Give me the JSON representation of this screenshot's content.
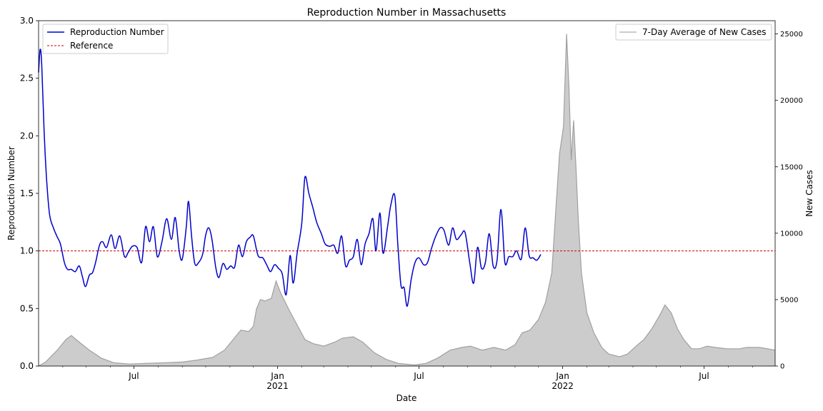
{
  "chart_data": {
    "type": "line",
    "title": "Reproduction Number in Massachusetts",
    "xlabel": "Date",
    "ylabel": "Reproduction Number",
    "y2label": "New Cases",
    "xlim": [
      "2020-03-01",
      "2022-09-30"
    ],
    "ylim": [
      0,
      3.0
    ],
    "y2lim": [
      0,
      26000
    ],
    "grid": false,
    "x_ticks": [
      {
        "date": "2020-07-01",
        "label": "Jul",
        "sub": ""
      },
      {
        "date": "2021-01-01",
        "label": "Jan",
        "sub": "2021"
      },
      {
        "date": "2021-07-01",
        "label": "Jul",
        "sub": ""
      },
      {
        "date": "2022-01-01",
        "label": "Jan",
        "sub": "2022"
      },
      {
        "date": "2022-07-01",
        "label": "Jul",
        "sub": ""
      }
    ],
    "x_minor_ticks": [
      "2020-04-01",
      "2020-05-01",
      "2020-06-01",
      "2020-08-01",
      "2020-09-01",
      "2020-10-01",
      "2020-11-01",
      "2020-12-01",
      "2021-02-01",
      "2021-03-01",
      "2021-04-01",
      "2021-05-01",
      "2021-06-01",
      "2021-08-01",
      "2021-09-01",
      "2021-10-01",
      "2021-11-01",
      "2021-12-01",
      "2022-02-01",
      "2022-03-01",
      "2022-04-01",
      "2022-05-01",
      "2022-06-01",
      "2022-08-01",
      "2022-09-01"
    ],
    "y_ticks": [
      "0.0",
      "0.5",
      "1.0",
      "1.5",
      "2.0",
      "2.5",
      "3.0"
    ],
    "y2_ticks": [
      "0",
      "5000",
      "10000",
      "15000",
      "20000",
      "25000"
    ],
    "legend_left": {
      "placement": "upper-left",
      "entries": [
        "Reproduction Number",
        "Reference"
      ]
    },
    "legend_right": {
      "placement": "upper-right",
      "entries": [
        "7-Day Average of New Cases"
      ]
    },
    "series": [
      {
        "name": "Reproduction Number",
        "axis": "left",
        "color": "#0000cc",
        "points": [
          [
            "2020-03-01",
            2.55
          ],
          [
            "2020-03-03",
            2.75
          ],
          [
            "2020-03-05",
            2.62
          ],
          [
            "2020-03-08",
            2.05
          ],
          [
            "2020-03-11",
            1.65
          ],
          [
            "2020-03-15",
            1.32
          ],
          [
            "2020-03-20",
            1.2
          ],
          [
            "2020-03-25",
            1.12
          ],
          [
            "2020-03-29",
            1.06
          ],
          [
            "2020-04-03",
            0.9
          ],
          [
            "2020-04-07",
            0.84
          ],
          [
            "2020-04-12",
            0.84
          ],
          [
            "2020-04-17",
            0.82
          ],
          [
            "2020-04-22",
            0.87
          ],
          [
            "2020-04-26",
            0.78
          ],
          [
            "2020-04-30",
            0.69
          ],
          [
            "2020-05-05",
            0.79
          ],
          [
            "2020-05-09",
            0.81
          ],
          [
            "2020-05-13",
            0.9
          ],
          [
            "2020-05-18",
            1.05
          ],
          [
            "2020-05-22",
            1.08
          ],
          [
            "2020-05-27",
            1.03
          ],
          [
            "2020-06-02",
            1.14
          ],
          [
            "2020-06-07",
            1.02
          ],
          [
            "2020-06-13",
            1.13
          ],
          [
            "2020-06-19",
            0.95
          ],
          [
            "2020-06-24",
            0.99
          ],
          [
            "2020-06-29",
            1.04
          ],
          [
            "2020-07-05",
            1.03
          ],
          [
            "2020-07-11",
            0.9
          ],
          [
            "2020-07-16",
            1.21
          ],
          [
            "2020-07-21",
            1.08
          ],
          [
            "2020-07-26",
            1.21
          ],
          [
            "2020-07-31",
            0.95
          ],
          [
            "2020-08-06",
            1.08
          ],
          [
            "2020-08-12",
            1.28
          ],
          [
            "2020-08-18",
            1.1
          ],
          [
            "2020-08-23",
            1.29
          ],
          [
            "2020-08-28",
            1.0
          ],
          [
            "2020-09-01",
            0.93
          ],
          [
            "2020-09-06",
            1.2
          ],
          [
            "2020-09-09",
            1.43
          ],
          [
            "2020-09-13",
            1.12
          ],
          [
            "2020-09-17",
            0.89
          ],
          [
            "2020-09-22",
            0.9
          ],
          [
            "2020-09-27",
            0.97
          ],
          [
            "2020-10-01",
            1.14
          ],
          [
            "2020-10-05",
            1.2
          ],
          [
            "2020-10-09",
            1.1
          ],
          [
            "2020-10-14",
            0.85
          ],
          [
            "2020-10-18",
            0.77
          ],
          [
            "2020-10-23",
            0.89
          ],
          [
            "2020-10-28",
            0.84
          ],
          [
            "2020-11-02",
            0.87
          ],
          [
            "2020-11-07",
            0.86
          ],
          [
            "2020-11-12",
            1.05
          ],
          [
            "2020-11-17",
            0.95
          ],
          [
            "2020-11-22",
            1.08
          ],
          [
            "2020-11-27",
            1.12
          ],
          [
            "2020-12-01",
            1.13
          ],
          [
            "2020-12-07",
            0.96
          ],
          [
            "2020-12-13",
            0.94
          ],
          [
            "2020-12-18",
            0.88
          ],
          [
            "2020-12-23",
            0.82
          ],
          [
            "2020-12-28",
            0.88
          ],
          [
            "2021-01-02",
            0.85
          ],
          [
            "2021-01-07",
            0.8
          ],
          [
            "2021-01-12",
            0.62
          ],
          [
            "2021-01-17",
            0.96
          ],
          [
            "2021-01-21",
            0.72
          ],
          [
            "2021-01-26",
            0.98
          ],
          [
            "2021-02-01",
            1.24
          ],
          [
            "2021-02-05",
            1.64
          ],
          [
            "2021-02-10",
            1.5
          ],
          [
            "2021-02-15",
            1.38
          ],
          [
            "2021-02-20",
            1.25
          ],
          [
            "2021-02-26",
            1.15
          ],
          [
            "2021-03-03",
            1.06
          ],
          [
            "2021-03-09",
            1.04
          ],
          [
            "2021-03-14",
            1.05
          ],
          [
            "2021-03-19",
            0.98
          ],
          [
            "2021-03-24",
            1.13
          ],
          [
            "2021-03-29",
            0.87
          ],
          [
            "2021-04-03",
            0.92
          ],
          [
            "2021-04-08",
            0.95
          ],
          [
            "2021-04-13",
            1.1
          ],
          [
            "2021-04-18",
            0.88
          ],
          [
            "2021-04-23",
            1.06
          ],
          [
            "2021-04-28",
            1.15
          ],
          [
            "2021-05-03",
            1.28
          ],
          [
            "2021-05-07",
            1.0
          ],
          [
            "2021-05-12",
            1.33
          ],
          [
            "2021-05-16",
            0.98
          ],
          [
            "2021-05-22",
            1.22
          ],
          [
            "2021-05-26",
            1.4
          ],
          [
            "2021-05-31",
            1.48
          ],
          [
            "2021-06-04",
            1.05
          ],
          [
            "2021-06-08",
            0.7
          ],
          [
            "2021-06-12",
            0.68
          ],
          [
            "2021-06-16",
            0.52
          ],
          [
            "2021-06-21",
            0.75
          ],
          [
            "2021-06-26",
            0.9
          ],
          [
            "2021-07-01",
            0.94
          ],
          [
            "2021-07-07",
            0.88
          ],
          [
            "2021-07-12",
            0.9
          ],
          [
            "2021-07-17",
            1.02
          ],
          [
            "2021-07-22",
            1.12
          ],
          [
            "2021-07-28",
            1.2
          ],
          [
            "2021-08-02",
            1.18
          ],
          [
            "2021-08-08",
            1.05
          ],
          [
            "2021-08-13",
            1.2
          ],
          [
            "2021-08-18",
            1.1
          ],
          [
            "2021-08-24",
            1.14
          ],
          [
            "2021-08-29",
            1.16
          ],
          [
            "2021-09-04",
            0.9
          ],
          [
            "2021-09-09",
            0.72
          ],
          [
            "2021-09-14",
            1.03
          ],
          [
            "2021-09-19",
            0.85
          ],
          [
            "2021-09-24",
            0.9
          ],
          [
            "2021-09-29",
            1.15
          ],
          [
            "2021-10-04",
            0.87
          ],
          [
            "2021-10-09",
            0.92
          ],
          [
            "2021-10-14",
            1.36
          ],
          [
            "2021-10-19",
            0.9
          ],
          [
            "2021-10-24",
            0.95
          ],
          [
            "2021-10-29",
            0.95
          ],
          [
            "2021-11-03",
            1.0
          ],
          [
            "2021-11-09",
            0.93
          ],
          [
            "2021-11-14",
            1.2
          ],
          [
            "2021-11-19",
            0.96
          ],
          [
            "2021-11-24",
            0.94
          ],
          [
            "2021-11-29",
            0.92
          ],
          [
            "2021-12-04",
            0.97
          ]
        ]
      },
      {
        "name": "Reference",
        "axis": "left",
        "color": "#cc0000",
        "value": 1.0
      },
      {
        "name": "7-Day Average of New Cases",
        "axis": "right",
        "color": "#a0a0a0",
        "fill": "#cccccc",
        "points": [
          [
            "2020-03-01",
            0
          ],
          [
            "2020-03-10",
            300
          ],
          [
            "2020-03-25",
            1200
          ],
          [
            "2020-04-05",
            2000
          ],
          [
            "2020-04-12",
            2300
          ],
          [
            "2020-04-22",
            1800
          ],
          [
            "2020-05-05",
            1200
          ],
          [
            "2020-05-20",
            600
          ],
          [
            "2020-06-05",
            250
          ],
          [
            "2020-06-25",
            150
          ],
          [
            "2020-07-15",
            200
          ],
          [
            "2020-08-10",
            250
          ],
          [
            "2020-09-01",
            300
          ],
          [
            "2020-09-20",
            450
          ],
          [
            "2020-10-10",
            650
          ],
          [
            "2020-10-25",
            1200
          ],
          [
            "2020-11-08",
            2200
          ],
          [
            "2020-11-15",
            2700
          ],
          [
            "2020-11-25",
            2600
          ],
          [
            "2020-12-01",
            3000
          ],
          [
            "2020-12-05",
            4300
          ],
          [
            "2020-12-10",
            5000
          ],
          [
            "2020-12-16",
            4900
          ],
          [
            "2020-12-24",
            5100
          ],
          [
            "2020-12-30",
            6400
          ],
          [
            "2021-01-05",
            5500
          ],
          [
            "2021-01-15",
            4300
          ],
          [
            "2021-01-25",
            3200
          ],
          [
            "2021-02-05",
            2000
          ],
          [
            "2021-02-15",
            1700
          ],
          [
            "2021-03-01",
            1500
          ],
          [
            "2021-03-15",
            1800
          ],
          [
            "2021-03-25",
            2100
          ],
          [
            "2021-04-08",
            2200
          ],
          [
            "2021-04-20",
            1800
          ],
          [
            "2021-05-05",
            1000
          ],
          [
            "2021-05-20",
            500
          ],
          [
            "2021-06-05",
            200
          ],
          [
            "2021-06-25",
            80
          ],
          [
            "2021-07-10",
            200
          ],
          [
            "2021-07-25",
            600
          ],
          [
            "2021-08-10",
            1200
          ],
          [
            "2021-08-25",
            1400
          ],
          [
            "2021-09-05",
            1500
          ],
          [
            "2021-09-20",
            1200
          ],
          [
            "2021-10-05",
            1400
          ],
          [
            "2021-10-20",
            1200
          ],
          [
            "2021-11-01",
            1600
          ],
          [
            "2021-11-10",
            2500
          ],
          [
            "2021-11-20",
            2700
          ],
          [
            "2021-12-01",
            3500
          ],
          [
            "2021-12-10",
            4800
          ],
          [
            "2021-12-18",
            7000
          ],
          [
            "2021-12-24",
            12500
          ],
          [
            "2021-12-28",
            16000
          ],
          [
            "2022-01-02",
            18000
          ],
          [
            "2022-01-06",
            25000
          ],
          [
            "2022-01-09",
            21000
          ],
          [
            "2022-01-12",
            15500
          ],
          [
            "2022-01-15",
            18500
          ],
          [
            "2022-01-18",
            15000
          ],
          [
            "2022-01-21",
            11000
          ],
          [
            "2022-01-25",
            7000
          ],
          [
            "2022-02-01",
            4000
          ],
          [
            "2022-02-10",
            2500
          ],
          [
            "2022-02-20",
            1400
          ],
          [
            "2022-03-01",
            900
          ],
          [
            "2022-03-15",
            700
          ],
          [
            "2022-03-25",
            900
          ],
          [
            "2022-04-05",
            1500
          ],
          [
            "2022-04-15",
            2000
          ],
          [
            "2022-04-25",
            2800
          ],
          [
            "2022-05-05",
            3800
          ],
          [
            "2022-05-12",
            4600
          ],
          [
            "2022-05-20",
            4000
          ],
          [
            "2022-05-28",
            2800
          ],
          [
            "2022-06-05",
            2000
          ],
          [
            "2022-06-15",
            1300
          ],
          [
            "2022-06-25",
            1300
          ],
          [
            "2022-07-05",
            1500
          ],
          [
            "2022-07-15",
            1400
          ],
          [
            "2022-07-30",
            1300
          ],
          [
            "2022-08-15",
            1300
          ],
          [
            "2022-08-25",
            1400
          ],
          [
            "2022-09-10",
            1400
          ],
          [
            "2022-09-30",
            1200
          ]
        ]
      }
    ]
  }
}
